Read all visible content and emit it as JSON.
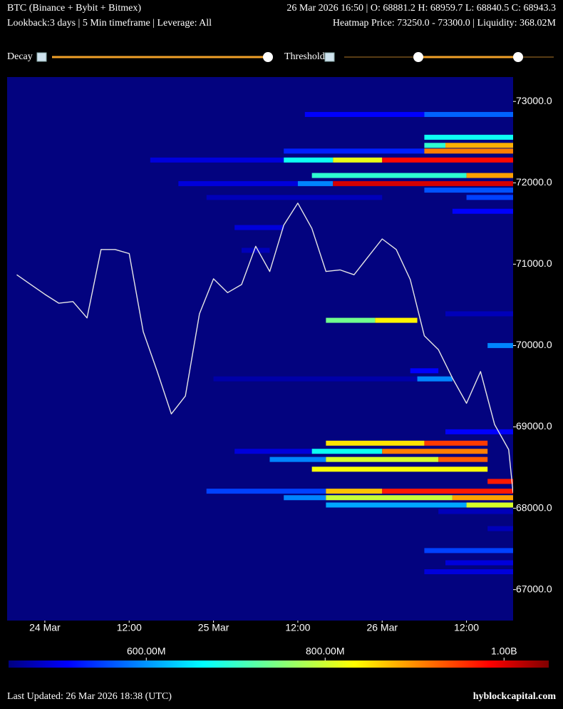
{
  "chart_data": {
    "type": "heatmap",
    "title": "BTC (Binance + Bybit + Bitmex)",
    "ohlc": "26 Mar 2026 16:50 | O: 68881.2 H: 68959.7 L: 68840.5 C: 68943.3",
    "subtitle": "Lookback:3 days | 5 Min timeframe | Leverage: All",
    "heatmap_info": "Heatmap Price: 73250.0 - 73300.0 | Liquidity: 368.02M",
    "controls": [
      "Decay",
      "Threshold"
    ],
    "footer": "Last Updated: 26 Mar 2026 18:38 (UTC)",
    "source": "hyblockcapital.com",
    "xlim": [
      "23 Mar 18:38",
      "26 Mar 18:38"
    ],
    "xticks": [
      {
        "value": "24 Mar 00:00",
        "label": "24 Mar"
      },
      {
        "value": "24 Mar 12:00",
        "label": "12:00"
      },
      {
        "value": "25 Mar 00:00",
        "label": "25 Mar"
      },
      {
        "value": "25 Mar 12:00",
        "label": "12:00"
      },
      {
        "value": "26 Mar 00:00",
        "label": "26 Mar"
      },
      {
        "value": "26 Mar 12:00",
        "label": "12:00"
      }
    ],
    "ylim": [
      66620,
      73300
    ],
    "yticks": [
      {
        "value": 67000,
        "label": "67000.0"
      },
      {
        "value": 68000,
        "label": "68000.0"
      },
      {
        "value": 69000,
        "label": "69000.0"
      },
      {
        "value": 70000,
        "label": "70000.0"
      },
      {
        "value": 71000,
        "label": "71000.0"
      },
      {
        "value": 72000,
        "label": "72000.0"
      },
      {
        "value": 73000,
        "label": "73000.0"
      }
    ],
    "colorbar": {
      "lim": [
        446000000,
        1050000000
      ],
      "ticks": [
        {
          "value": 600000000,
          "label": "600.00M"
        },
        {
          "value": 800000000,
          "label": "800.00M"
        },
        {
          "value": 1000000000,
          "label": "1.00B"
        }
      ]
    },
    "price": {
      "color": "#e6e6e6",
      "x": [
        "23 Mar 20:00",
        "23 Mar 22:00",
        "24 Mar 00:00",
        "24 Mar 02:00",
        "24 Mar 04:00",
        "24 Mar 06:00",
        "24 Mar 08:00",
        "24 Mar 10:00",
        "24 Mar 12:00",
        "24 Mar 14:00",
        "24 Mar 16:00",
        "24 Mar 18:00",
        "24 Mar 20:00",
        "24 Mar 22:00",
        "25 Mar 00:00",
        "25 Mar 02:00",
        "25 Mar 04:00",
        "25 Mar 06:00",
        "25 Mar 08:00",
        "25 Mar 10:00",
        "25 Mar 12:00",
        "25 Mar 14:00",
        "25 Mar 16:00",
        "25 Mar 18:00",
        "25 Mar 20:00",
        "25 Mar 22:00",
        "26 Mar 00:00",
        "26 Mar 02:00",
        "26 Mar 04:00",
        "26 Mar 06:00",
        "26 Mar 08:00",
        "26 Mar 10:00",
        "26 Mar 12:00",
        "26 Mar 14:00",
        "26 Mar 16:00",
        "26 Mar 18:00",
        "26 Mar 18:38"
      ],
      "values": [
        70870,
        70750,
        70630,
        70520,
        70540,
        70340,
        71180,
        71180,
        71130,
        70170,
        69680,
        69160,
        69380,
        70390,
        70820,
        70650,
        70750,
        71220,
        70910,
        71480,
        71750,
        71440,
        70910,
        70930,
        70870,
        71090,
        71310,
        71180,
        70810,
        70120,
        69950,
        69600,
        69290,
        69680,
        69030,
        68720,
        68190
      ]
    },
    "bands": [
      {
        "price": 72840,
        "segments": [
          {
            "start": "25 Mar 13:00",
            "end": "26 Mar 06:00",
            "liquidity": 520000000
          },
          {
            "start": "26 Mar 06:00",
            "end": "26 Mar 18:38",
            "liquidity": 580000000
          }
        ]
      },
      {
        "price": 72560,
        "segments": [
          {
            "start": "26 Mar 06:00",
            "end": "26 Mar 18:38",
            "liquidity": 680000000
          }
        ]
      },
      {
        "price": 72460,
        "segments": [
          {
            "start": "26 Mar 06:00",
            "end": "26 Mar 09:00",
            "liquidity": 700000000
          },
          {
            "start": "26 Mar 09:00",
            "end": "26 Mar 18:38",
            "liquidity": 870000000
          }
        ]
      },
      {
        "price": 72390,
        "segments": [
          {
            "start": "25 Mar 10:00",
            "end": "26 Mar 06:00",
            "liquidity": 540000000
          },
          {
            "start": "26 Mar 06:00",
            "end": "26 Mar 18:38",
            "liquidity": 900000000
          }
        ]
      },
      {
        "price": 72280,
        "segments": [
          {
            "start": "24 Mar 15:00",
            "end": "25 Mar 10:00",
            "liquidity": 500000000
          },
          {
            "start": "25 Mar 10:00",
            "end": "25 Mar 17:00",
            "liquidity": 680000000
          },
          {
            "start": "25 Mar 17:00",
            "end": "26 Mar 00:00",
            "liquidity": 810000000
          },
          {
            "start": "26 Mar 00:00",
            "end": "26 Mar 18:38",
            "liquidity": 970000000
          }
        ]
      },
      {
        "price": 72090,
        "segments": [
          {
            "start": "25 Mar 14:00",
            "end": "26 Mar 12:00",
            "liquidity": 700000000
          },
          {
            "start": "26 Mar 12:00",
            "end": "26 Mar 18:38",
            "liquidity": 880000000
          }
        ]
      },
      {
        "price": 71990,
        "segments": [
          {
            "start": "24 Mar 19:00",
            "end": "25 Mar 12:00",
            "liquidity": 500000000
          },
          {
            "start": "25 Mar 12:00",
            "end": "25 Mar 17:00",
            "liquidity": 600000000
          },
          {
            "start": "25 Mar 17:00",
            "end": "26 Mar 18:38",
            "liquidity": 1000000000
          }
        ]
      },
      {
        "price": 71910,
        "segments": [
          {
            "start": "26 Mar 06:00",
            "end": "26 Mar 18:38",
            "liquidity": 570000000
          }
        ]
      },
      {
        "price": 71820,
        "segments": [
          {
            "start": "24 Mar 23:00",
            "end": "26 Mar 00:00",
            "liquidity": 480000000
          },
          {
            "start": "26 Mar 12:00",
            "end": "26 Mar 18:38",
            "liquidity": 560000000
          }
        ]
      },
      {
        "price": 71650,
        "segments": [
          {
            "start": "26 Mar 10:00",
            "end": "26 Mar 18:38",
            "liquidity": 520000000
          }
        ]
      },
      {
        "price": 71450,
        "segments": [
          {
            "start": "25 Mar 03:00",
            "end": "25 Mar 10:00",
            "liquidity": 500000000
          }
        ]
      },
      {
        "price": 71170,
        "segments": [
          {
            "start": "25 Mar 04:00",
            "end": "25 Mar 08:00",
            "liquidity": 480000000
          }
        ]
      },
      {
        "price": 70390,
        "segments": [
          {
            "start": "26 Mar 09:00",
            "end": "26 Mar 18:38",
            "liquidity": 480000000
          }
        ]
      },
      {
        "price": 70310,
        "segments": [
          {
            "start": "25 Mar 16:00",
            "end": "25 Mar 23:00",
            "liquidity": 740000000
          },
          {
            "start": "25 Mar 23:00",
            "end": "26 Mar 05:00",
            "liquidity": 830000000
          }
        ]
      },
      {
        "price": 70000,
        "segments": [
          {
            "start": "26 Mar 15:00",
            "end": "26 Mar 18:38",
            "liquidity": 600000000
          }
        ]
      },
      {
        "price": 69690,
        "segments": [
          {
            "start": "26 Mar 04:00",
            "end": "26 Mar 08:00",
            "liquidity": 520000000
          }
        ]
      },
      {
        "price": 69590,
        "segments": [
          {
            "start": "25 Mar 00:00",
            "end": "26 Mar 05:00",
            "liquidity": 470000000
          },
          {
            "start": "26 Mar 05:00",
            "end": "26 Mar 10:00",
            "liquidity": 600000000
          }
        ]
      },
      {
        "price": 68940,
        "segments": [
          {
            "start": "26 Mar 09:00",
            "end": "26 Mar 18:38",
            "liquidity": 520000000
          }
        ]
      },
      {
        "price": 68800,
        "segments": [
          {
            "start": "25 Mar 16:00",
            "end": "26 Mar 06:00",
            "liquidity": 840000000
          },
          {
            "start": "26 Mar 06:00",
            "end": "26 Mar 15:00",
            "liquidity": 940000000
          }
        ]
      },
      {
        "price": 68700,
        "segments": [
          {
            "start": "25 Mar 03:00",
            "end": "25 Mar 14:00",
            "liquidity": 500000000
          },
          {
            "start": "25 Mar 14:00",
            "end": "26 Mar 00:00",
            "liquidity": 680000000
          },
          {
            "start": "26 Mar 00:00",
            "end": "26 Mar 15:00",
            "liquidity": 900000000
          }
        ]
      },
      {
        "price": 68600,
        "segments": [
          {
            "start": "25 Mar 08:00",
            "end": "25 Mar 16:00",
            "liquidity": 600000000
          },
          {
            "start": "25 Mar 16:00",
            "end": "26 Mar 08:00",
            "liquidity": 800000000
          },
          {
            "start": "26 Mar 08:00",
            "end": "26 Mar 15:00",
            "liquidity": 920000000
          }
        ]
      },
      {
        "price": 68480,
        "segments": [
          {
            "start": "25 Mar 14:00",
            "end": "26 Mar 15:00",
            "liquidity": 820000000
          }
        ]
      },
      {
        "price": 68330,
        "segments": [
          {
            "start": "26 Mar 15:00",
            "end": "26 Mar 18:38",
            "liquidity": 960000000
          }
        ]
      },
      {
        "price": 68210,
        "segments": [
          {
            "start": "24 Mar 23:00",
            "end": "25 Mar 16:00",
            "liquidity": 560000000
          },
          {
            "start": "25 Mar 16:00",
            "end": "26 Mar 00:00",
            "liquidity": 860000000
          },
          {
            "start": "26 Mar 00:00",
            "end": "26 Mar 18:38",
            "liquidity": 960000000
          }
        ]
      },
      {
        "price": 68130,
        "segments": [
          {
            "start": "25 Mar 10:00",
            "end": "25 Mar 16:00",
            "liquidity": 600000000
          },
          {
            "start": "25 Mar 16:00",
            "end": "26 Mar 10:00",
            "liquidity": 790000000
          },
          {
            "start": "26 Mar 10:00",
            "end": "26 Mar 18:38",
            "liquidity": 880000000
          }
        ]
      },
      {
        "price": 68040,
        "segments": [
          {
            "start": "25 Mar 16:00",
            "end": "26 Mar 12:00",
            "liquidity": 620000000
          },
          {
            "start": "26 Mar 12:00",
            "end": "26 Mar 18:38",
            "liquidity": 800000000
          }
        ]
      },
      {
        "price": 67960,
        "segments": [
          {
            "start": "26 Mar 08:00",
            "end": "26 Mar 18:38",
            "liquidity": 480000000
          }
        ]
      },
      {
        "price": 67750,
        "segments": [
          {
            "start": "26 Mar 15:00",
            "end": "26 Mar 18:38",
            "liquidity": 480000000
          }
        ]
      },
      {
        "price": 67480,
        "segments": [
          {
            "start": "26 Mar 06:00",
            "end": "26 Mar 18:38",
            "liquidity": 560000000
          }
        ]
      },
      {
        "price": 67330,
        "segments": [
          {
            "start": "26 Mar 09:00",
            "end": "26 Mar 18:38",
            "liquidity": 500000000
          }
        ]
      },
      {
        "price": 67220,
        "segments": [
          {
            "start": "26 Mar 06:00",
            "end": "26 Mar 18:38",
            "liquidity": 500000000
          }
        ]
      }
    ]
  }
}
